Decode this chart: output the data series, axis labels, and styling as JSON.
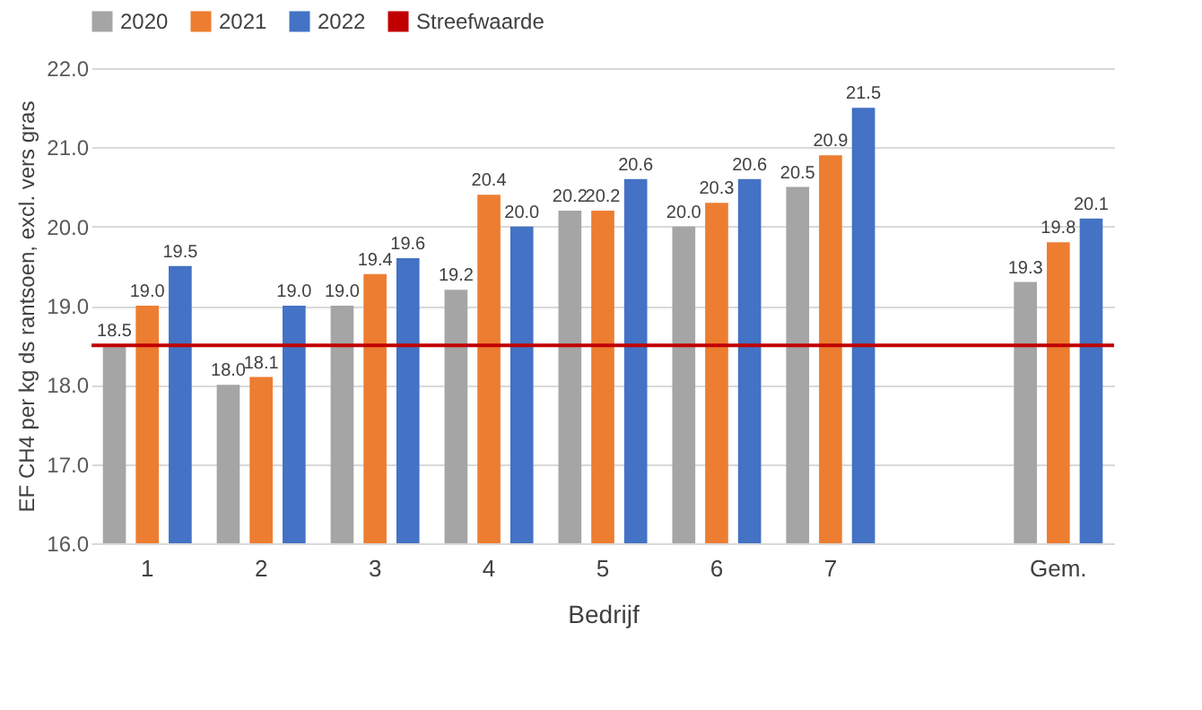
{
  "chart_data": {
    "type": "bar",
    "xlabel": "Bedrijf",
    "ylabel": "EF CH4 per kg ds rantsoen, excl. vers gras",
    "categories": [
      "1",
      "2",
      "3",
      "4",
      "5",
      "6",
      "7",
      null,
      "Gem."
    ],
    "series": [
      {
        "name": "2020",
        "color": "#a5a5a5",
        "values": [
          18.5,
          18.0,
          19.0,
          19.2,
          20.2,
          20.0,
          20.5,
          null,
          19.3
        ],
        "value_labels": [
          "18.5",
          "18.0",
          "19.0",
          "19.2",
          "20.2",
          "20.0",
          "20.5",
          null,
          "19.3"
        ]
      },
      {
        "name": "2021",
        "color": "#ed7d31",
        "values": [
          19.0,
          18.1,
          19.4,
          20.4,
          20.2,
          20.3,
          20.9,
          null,
          19.8
        ],
        "value_labels": [
          "19.0",
          "18.1",
          "19.4",
          "20.4",
          "20.2",
          "20.3",
          "20.9",
          null,
          "19.8"
        ]
      },
      {
        "name": "2022",
        "color": "#4472c4",
        "values": [
          19.5,
          19.0,
          19.6,
          20.0,
          20.6,
          20.6,
          21.5,
          null,
          20.1
        ],
        "value_labels": [
          "19.5",
          "19.0",
          "19.6",
          "20.0",
          "20.6",
          "20.6",
          "21.5",
          null,
          "20.1"
        ]
      }
    ],
    "ylim": [
      16,
      22
    ],
    "yticks": [
      {
        "value": 16,
        "label": "16.0"
      },
      {
        "value": 17,
        "label": "17.0"
      },
      {
        "value": 18,
        "label": "18.0"
      },
      {
        "value": 19,
        "label": "19.0"
      },
      {
        "value": 20,
        "label": "20.0"
      },
      {
        "value": 21,
        "label": "21.0"
      },
      {
        "value": 22,
        "label": "22.0"
      }
    ],
    "ref_lines": [
      {
        "axis": "y",
        "value": 18.5,
        "label": "Streefwaarde",
        "color": "#c00000"
      }
    ],
    "data_labels": true,
    "grid": "y",
    "legend": "top"
  }
}
